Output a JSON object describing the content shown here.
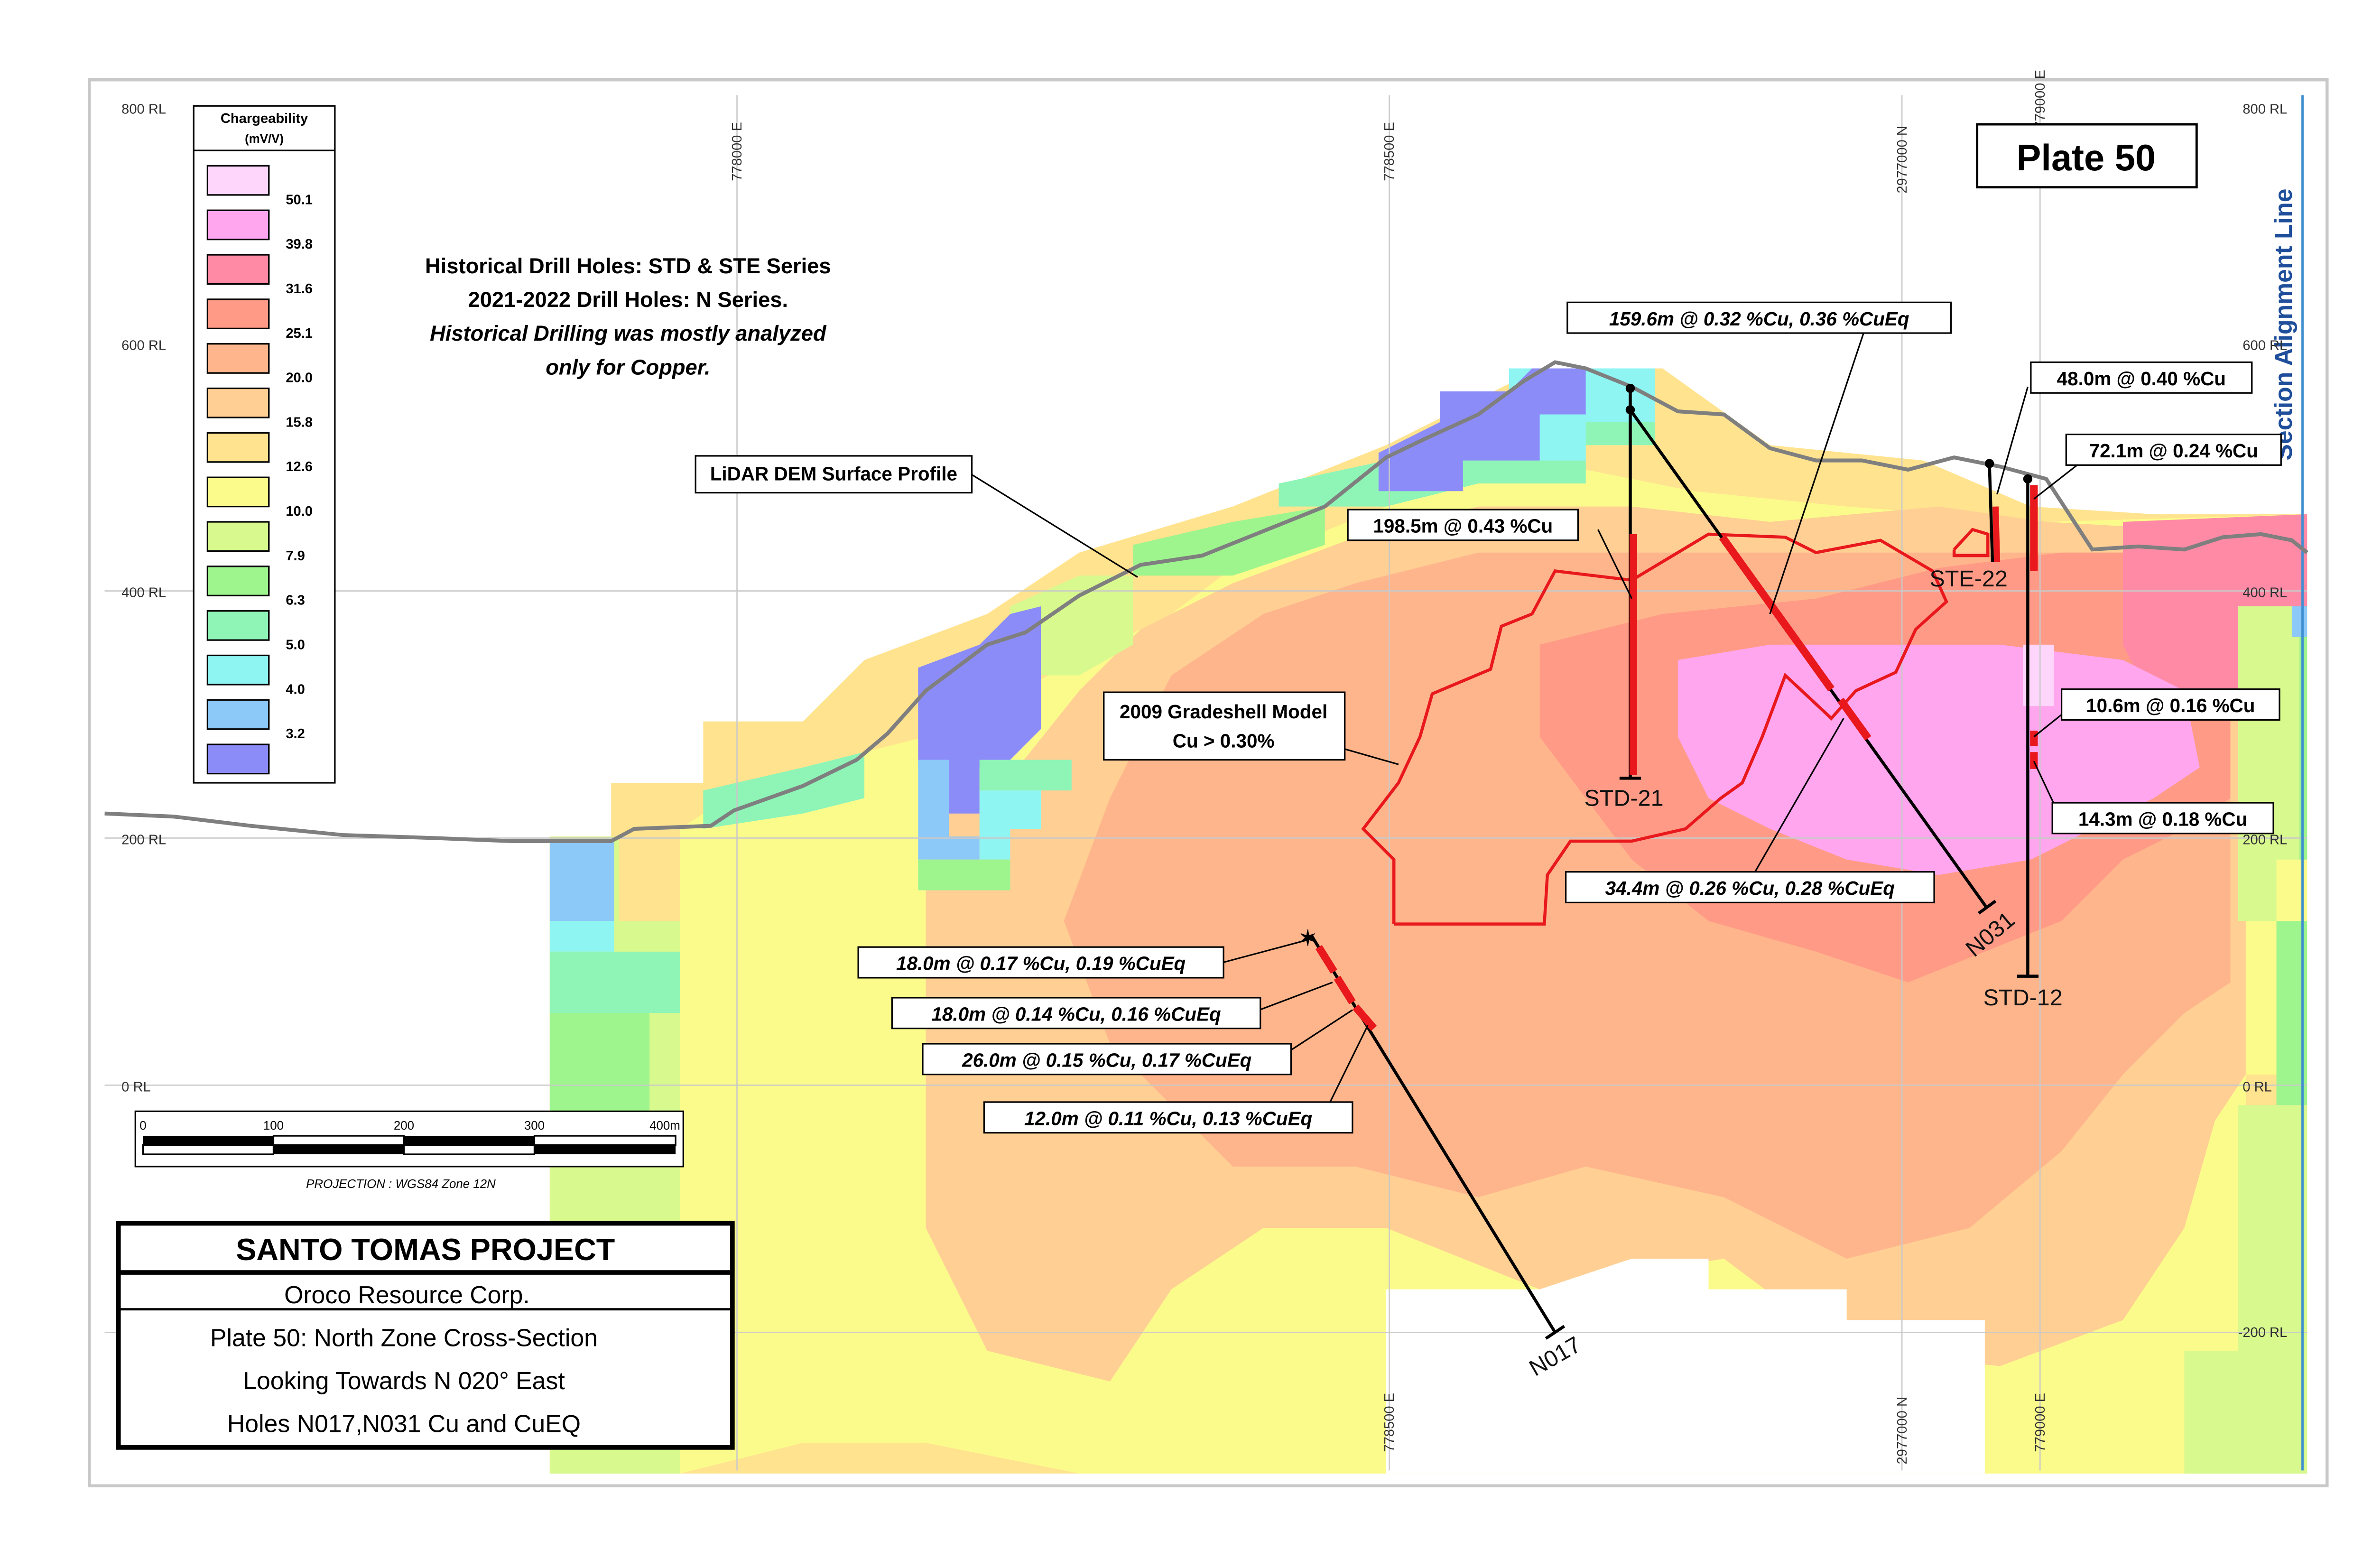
{
  "plate_badge": "Plate 50",
  "section_line_label": "Section Alignment Line",
  "rl_labels": [
    "800 RL",
    "600 RL",
    "400 RL",
    "200 RL",
    "0 RL",
    "-200 RL"
  ],
  "grid_labels": {
    "e778000": "778000 E",
    "e778500": "778500 E",
    "n2977000": "2977000 N",
    "e779000": "779000 E"
  },
  "legend": {
    "title": "Chargeability",
    "units": "(mV/V)",
    "breaks": [
      "50.1",
      "39.8",
      "31.6",
      "25.1",
      "20.0",
      "15.8",
      "12.6",
      "10.0",
      "7.9",
      "6.3",
      "5.0",
      "4.0",
      "3.2"
    ],
    "colors": [
      "#ffd6fb",
      "#ffa6ef",
      "#ff8aa6",
      "#ff9a86",
      "#ffb58c",
      "#ffcf94",
      "#ffe38f",
      "#fbfb8c",
      "#d8f98e",
      "#9ef58e",
      "#8ef5b7",
      "#8ef5f2",
      "#8cc8f8",
      "#8c8cf8"
    ]
  },
  "notes": {
    "line1": "Historical Drill Holes: STD & STE Series",
    "line2": "2021-2022 Drill Holes: N Series.",
    "line3": "Historical Drilling was mostly analyzed",
    "line4": "only for Copper."
  },
  "callouts": {
    "lidar": "LiDAR DEM Surface Profile",
    "gradeshell_1": "2009 Gradeshell Model",
    "gradeshell_2": "Cu > 0.30%",
    "std21_int": "198.5m @ 0.43 %Cu",
    "n031_a": "159.6m @ 0.32 %Cu, 0.36 %CuEq",
    "n031_b": "34.4m @ 0.26 %Cu, 0.28 %CuEq",
    "ste22_int": "48.0m @ 0.40 %Cu",
    "std12_a": "72.1m @ 0.24 %Cu",
    "std12_b": "10.6m @ 0.16 %Cu",
    "std12_c": "14.3m @ 0.18 %Cu",
    "n017_a": "18.0m @ 0.17 %Cu, 0.19 %CuEq",
    "n017_b": "18.0m @ 0.14 %Cu, 0.16 %CuEq",
    "n017_c": "26.0m @ 0.15 %Cu, 0.17 %CuEq",
    "n017_d": "12.0m @ 0.11 %Cu, 0.13 %CuEq"
  },
  "holes": {
    "std21": "STD-21",
    "n031": "N031",
    "ste22": "STE-22",
    "std12": "STD-12",
    "n017": "N017"
  },
  "scale_bar": {
    "ticks": [
      "0",
      "100",
      "200",
      "300",
      "400m"
    ],
    "projection": "PROJECTION : WGS84 Zone 12N"
  },
  "title_block": {
    "project": "SANTO TOMAS PROJECT",
    "company": "Oroco Resource Corp.",
    "line1": "Plate 50: North Zone Cross-Section",
    "line2": "Looking Towards N 020° East",
    "line3": "Holes N017,N031 Cu and CuEQ"
  }
}
